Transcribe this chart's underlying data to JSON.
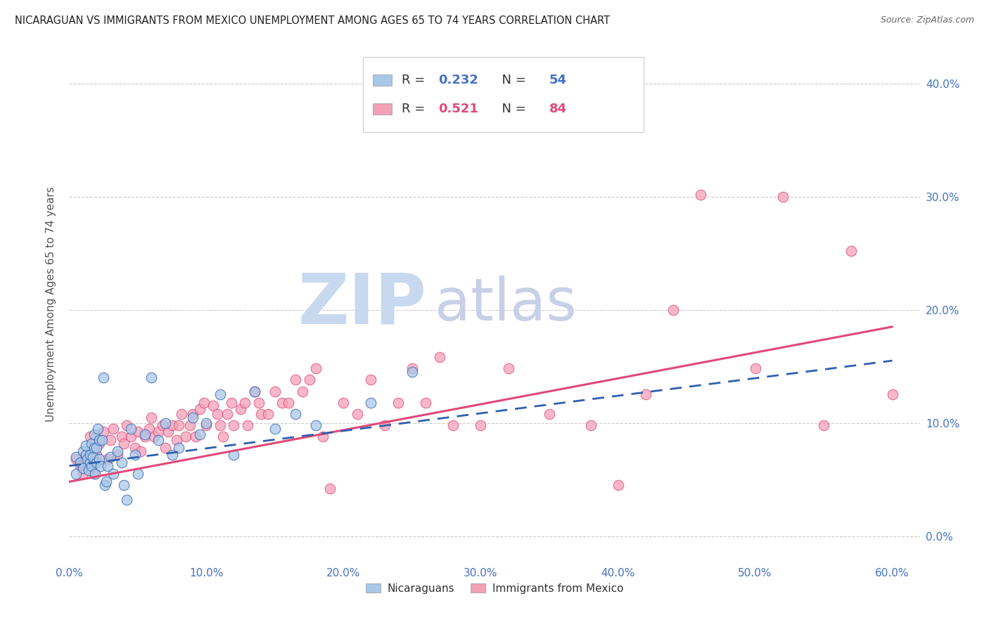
{
  "title": "NICARAGUAN VS IMMIGRANTS FROM MEXICO UNEMPLOYMENT AMONG AGES 65 TO 74 YEARS CORRELATION CHART",
  "source": "Source: ZipAtlas.com",
  "ylabel": "Unemployment Among Ages 65 to 74 years",
  "xlim": [
    0.0,
    0.62
  ],
  "ylim": [
    -0.025,
    0.435
  ],
  "ytick_vals": [
    0.0,
    0.1,
    0.2,
    0.3,
    0.4
  ],
  "ytick_labels": [
    "0.0%",
    "10.0%",
    "20.0%",
    "30.0%",
    "40.0%"
  ],
  "xtick_vals": [
    0.0,
    0.1,
    0.2,
    0.3,
    0.4,
    0.5,
    0.6
  ],
  "xtick_labels": [
    "0.0%",
    "10.0%",
    "20.0%",
    "30.0%",
    "40.0%",
    "50.0%",
    "60.0%"
  ],
  "legend1_R": "0.232",
  "legend1_N": "54",
  "legend2_R": "0.521",
  "legend2_N": "84",
  "color_blue_fill": "#a8c8e8",
  "color_pink_fill": "#f4a0b8",
  "color_blue_line": "#3060b0",
  "color_pink_line": "#e04878",
  "color_axis_blue": "#4472c4",
  "watermark_zip_color": "#c8d8ee",
  "watermark_atlas_color": "#c8d0e8",
  "background_color": "#ffffff",
  "grid_color": "#cccccc",
  "nicaraguan_x": [
    0.005,
    0.005,
    0.008,
    0.01,
    0.01,
    0.012,
    0.012,
    0.013,
    0.014,
    0.015,
    0.015,
    0.016,
    0.016,
    0.017,
    0.018,
    0.018,
    0.019,
    0.02,
    0.02,
    0.021,
    0.022,
    0.022,
    0.023,
    0.024,
    0.025,
    0.026,
    0.027,
    0.028,
    0.03,
    0.032,
    0.035,
    0.038,
    0.04,
    0.042,
    0.045,
    0.048,
    0.05,
    0.055,
    0.06,
    0.065,
    0.07,
    0.075,
    0.08,
    0.09,
    0.095,
    0.1,
    0.11,
    0.12,
    0.135,
    0.15,
    0.165,
    0.18,
    0.22,
    0.25
  ],
  "nicaraguan_y": [
    0.07,
    0.055,
    0.065,
    0.06,
    0.075,
    0.072,
    0.08,
    0.068,
    0.058,
    0.065,
    0.072,
    0.062,
    0.082,
    0.07,
    0.09,
    0.078,
    0.055,
    0.065,
    0.078,
    0.095,
    0.085,
    0.068,
    0.062,
    0.085,
    0.14,
    0.045,
    0.048,
    0.062,
    0.07,
    0.055,
    0.075,
    0.065,
    0.045,
    0.032,
    0.095,
    0.072,
    0.055,
    0.09,
    0.14,
    0.085,
    0.1,
    0.072,
    0.078,
    0.105,
    0.09,
    0.1,
    0.125,
    0.072,
    0.128,
    0.095,
    0.108,
    0.098,
    0.118,
    0.145
  ],
  "mexico_x": [
    0.005,
    0.008,
    0.01,
    0.012,
    0.015,
    0.018,
    0.02,
    0.022,
    0.025,
    0.028,
    0.03,
    0.032,
    0.035,
    0.038,
    0.04,
    0.042,
    0.045,
    0.048,
    0.05,
    0.052,
    0.055,
    0.058,
    0.06,
    0.062,
    0.065,
    0.068,
    0.07,
    0.072,
    0.075,
    0.078,
    0.08,
    0.082,
    0.085,
    0.088,
    0.09,
    0.092,
    0.095,
    0.098,
    0.1,
    0.105,
    0.108,
    0.11,
    0.112,
    0.115,
    0.118,
    0.12,
    0.125,
    0.128,
    0.13,
    0.135,
    0.138,
    0.14,
    0.145,
    0.15,
    0.155,
    0.16,
    0.165,
    0.17,
    0.175,
    0.18,
    0.185,
    0.19,
    0.2,
    0.21,
    0.22,
    0.23,
    0.24,
    0.25,
    0.26,
    0.27,
    0.28,
    0.3,
    0.32,
    0.35,
    0.38,
    0.4,
    0.42,
    0.44,
    0.46,
    0.5,
    0.52,
    0.55,
    0.57,
    0.6
  ],
  "mexico_y": [
    0.068,
    0.062,
    0.055,
    0.07,
    0.088,
    0.055,
    0.072,
    0.082,
    0.092,
    0.068,
    0.085,
    0.095,
    0.072,
    0.088,
    0.082,
    0.098,
    0.088,
    0.078,
    0.092,
    0.075,
    0.088,
    0.095,
    0.105,
    0.088,
    0.092,
    0.098,
    0.078,
    0.092,
    0.098,
    0.085,
    0.098,
    0.108,
    0.088,
    0.098,
    0.108,
    0.088,
    0.112,
    0.118,
    0.098,
    0.115,
    0.108,
    0.098,
    0.088,
    0.108,
    0.118,
    0.098,
    0.112,
    0.118,
    0.098,
    0.128,
    0.118,
    0.108,
    0.108,
    0.128,
    0.118,
    0.118,
    0.138,
    0.128,
    0.138,
    0.148,
    0.088,
    0.042,
    0.118,
    0.108,
    0.138,
    0.098,
    0.118,
    0.148,
    0.118,
    0.158,
    0.098,
    0.098,
    0.148,
    0.108,
    0.098,
    0.045,
    0.125,
    0.2,
    0.302,
    0.148,
    0.3,
    0.098,
    0.252,
    0.125
  ],
  "nic_line_x0": 0.0,
  "nic_line_x1": 0.6,
  "nic_line_y0": 0.062,
  "nic_line_y1": 0.155,
  "mex_line_x0": 0.0,
  "mex_line_x1": 0.6,
  "mex_line_y0": 0.048,
  "mex_line_y1": 0.185
}
